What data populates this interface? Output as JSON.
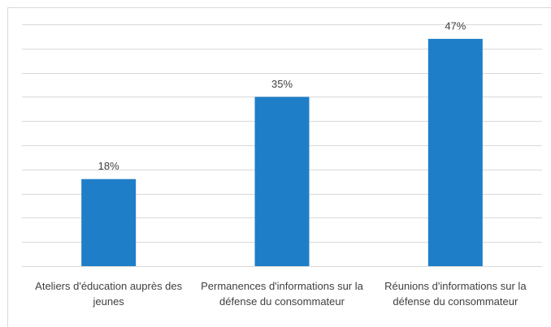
{
  "chart_data": {
    "type": "bar",
    "categories": [
      "Ateliers d'éducation auprès des jeunes",
      "Permanences d'informations sur la défense du consommateur",
      "Réunions d'informations sur la défense du consommateur"
    ],
    "values": [
      18,
      35,
      47
    ],
    "value_labels": [
      "18%",
      "35%",
      "47%"
    ],
    "color": "#1f7ec8",
    "ylim": [
      0,
      50
    ],
    "yticks": [
      0,
      5,
      10,
      15,
      20,
      25,
      30,
      35,
      40,
      45,
      50
    ],
    "grid": true
  }
}
